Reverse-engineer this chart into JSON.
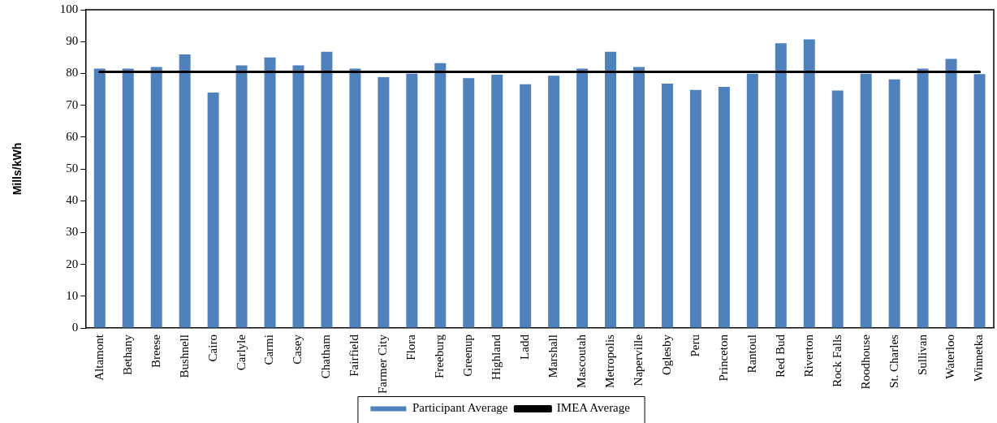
{
  "chart_data": {
    "type": "bar",
    "ylabel": "Mills/kWh",
    "categories": [
      "Altamont",
      "Bethany",
      "Breese",
      "Bushnell",
      "Cairo",
      "Carlyle",
      "Carmi",
      "Casey",
      "Chatham",
      "Fairfield",
      "Farmer City",
      "Flora",
      "Freeburg",
      "Greenup",
      "Highland",
      "Ladd",
      "Marshall",
      "Mascoutah",
      "Metropolis",
      "Naperville",
      "Oglesby",
      "Peru",
      "Princeton",
      "Rantoul",
      "Red Bud",
      "Riverton",
      "Rock Falls",
      "Roodhouse",
      "St. Charles",
      "Sullivan",
      "Waterloo",
      "Winnetka"
    ],
    "series": [
      {
        "name": "Participant Average",
        "color": "#4f81bd",
        "values": [
          81.5,
          81.5,
          82,
          86,
          74,
          82.5,
          85,
          82.5,
          86.8,
          81.5,
          78.8,
          79.9,
          83.2,
          78.5,
          79.6,
          76.6,
          79.3,
          81.5,
          86.8,
          82,
          76.8,
          74.8,
          75.8,
          79.9,
          89.5,
          90.7,
          74.6,
          79.9,
          78.1,
          81.5,
          84.6,
          79.8
        ]
      },
      {
        "name": "IMEA Average",
        "type": "line",
        "color": "#000000",
        "values": [
          80.5,
          80.5,
          80.5,
          80.5,
          80.5,
          80.5,
          80.5,
          80.5,
          80.5,
          80.5,
          80.5,
          80.5,
          80.5,
          80.5,
          80.5,
          80.5,
          80.5,
          80.5,
          80.5,
          80.5,
          80.5,
          80.5,
          80.5,
          80.5,
          80.5,
          80.5,
          80.5,
          80.5,
          80.5,
          80.5,
          80.5,
          80.5
        ]
      }
    ],
    "ylim": [
      0,
      100
    ],
    "yticks": [
      0,
      10,
      20,
      30,
      40,
      50,
      60,
      70,
      80,
      90,
      100
    ],
    "grid": false,
    "legend": "bottom",
    "marker": "none"
  }
}
